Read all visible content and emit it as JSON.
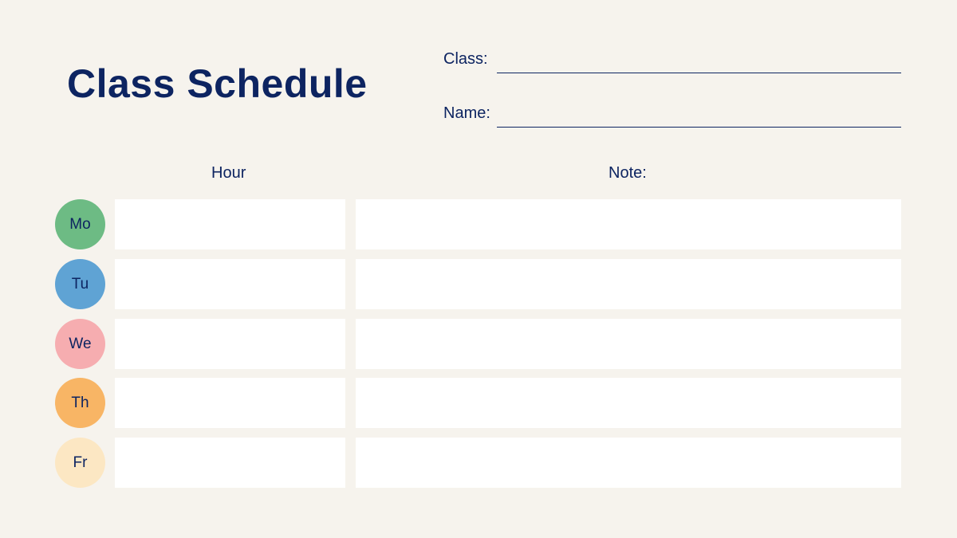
{
  "title": "Class Schedule",
  "fields": {
    "class_label": "Class:",
    "name_label": "Name:"
  },
  "headers": {
    "hour": "Hour",
    "note": "Note:"
  },
  "days": [
    {
      "label": "Mo",
      "color": "#6dbb84"
    },
    {
      "label": "Tu",
      "color": "#5fa3d4"
    },
    {
      "label": "We",
      "color": "#f6adb0"
    },
    {
      "label": "Th",
      "color": "#f8b565"
    },
    {
      "label": "Fr",
      "color": "#fce7c3"
    }
  ]
}
